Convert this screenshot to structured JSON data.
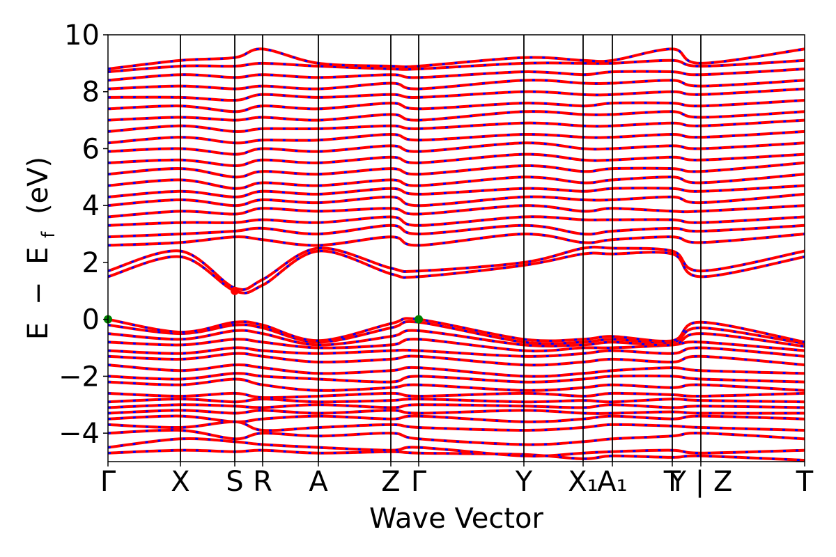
{
  "chart_data": {
    "type": "line",
    "xlabel": "Wave Vector",
    "ylabel_parts": [
      "E",
      "−",
      "E",
      "f",
      "(eV)"
    ],
    "ylim": [
      -5,
      10
    ],
    "yticks": [
      -4,
      -2,
      0,
      2,
      4,
      6,
      8,
      10
    ],
    "ytick_labels": [
      "−4",
      "−2",
      "0",
      "2",
      "4",
      "6",
      "8",
      "10"
    ],
    "xlim": [
      0,
      1
    ],
    "kpoints": [
      {
        "x": 0.0,
        "label": "Γ"
      },
      {
        "x": 0.104,
        "label": "X"
      },
      {
        "x": 0.182,
        "label": "S"
      },
      {
        "x": 0.222,
        "label": "R"
      },
      {
        "x": 0.302,
        "label": "A"
      },
      {
        "x": 0.406,
        "label": "Z"
      },
      {
        "x": 0.446,
        "label": "Γ"
      },
      {
        "x": 0.597,
        "label": "Y"
      },
      {
        "x": 0.682,
        "label": "X₁"
      },
      {
        "x": 0.724,
        "label": "A₁"
      },
      {
        "x": 0.81,
        "label": "T"
      },
      {
        "x": 0.851,
        "label": "Y | Z"
      },
      {
        "x": 1.0,
        "label": "T"
      }
    ],
    "series": [
      {
        "color": "#ff0000",
        "style": "solid"
      },
      {
        "color": "#0000ff",
        "style": "dashed"
      }
    ],
    "special_points": [
      {
        "x": 0.0,
        "y": 0.0,
        "color": "#008000"
      },
      {
        "x": 0.446,
        "y": 0.0,
        "color": "#008000"
      },
      {
        "x": 0.182,
        "y": 1.0,
        "color": "#ff0000"
      }
    ],
    "grid": false,
    "bands": [
      [
        -4.7,
        -4.6,
        -4.65,
        -4.6,
        -4.7,
        -4.65,
        -4.7,
        -4.75,
        -4.9,
        -4.8,
        -4.85,
        -4.8,
        -4.95
      ],
      [
        -4.5,
        -4.2,
        -4.3,
        -4.4,
        -4.5,
        -4.6,
        -4.5,
        -4.8,
        -4.7,
        -4.65,
        -4.6,
        -4.7,
        -4.6
      ],
      [
        -4.0,
        -3.9,
        -4.2,
        -4.0,
        -4.1,
        -4.0,
        -4.2,
        -4.4,
        -4.3,
        -4.2,
        -4.1,
        -4.0,
        -4.2
      ],
      [
        -3.7,
        -3.8,
        -3.6,
        -3.9,
        -3.8,
        -3.7,
        -3.8,
        -3.9,
        -3.8,
        -3.7,
        -3.75,
        -3.8,
        -3.9
      ],
      [
        -3.5,
        -3.4,
        -3.6,
        -3.5,
        -3.4,
        -3.5,
        -3.4,
        -3.6,
        -3.5,
        -3.4,
        -3.5,
        -3.4,
        -3.5
      ],
      [
        -3.3,
        -3.2,
        -3.3,
        -3.2,
        -3.3,
        -3.2,
        -3.3,
        -3.2,
        -3.3,
        -3.3,
        -3.25,
        -3.3,
        -3.3
      ],
      [
        -3.1,
        -3.0,
        -3.05,
        -3.1,
        -3.0,
        -3.1,
        -3.0,
        -3.05,
        -3.1,
        -3.0,
        -3.1,
        -3.05,
        -3.1
      ],
      [
        -2.9,
        -2.8,
        -2.9,
        -2.8,
        -2.9,
        -2.85,
        -2.8,
        -2.9,
        -2.85,
        -2.9,
        -2.8,
        -2.85,
        -2.9
      ],
      [
        -2.6,
        -2.7,
        -2.6,
        -2.75,
        -2.7,
        -2.6,
        -2.7,
        -2.6,
        -2.7,
        -2.6,
        -2.65,
        -2.7,
        -2.6
      ],
      [
        -2.2,
        -2.3,
        -2.1,
        -2.3,
        -2.5,
        -2.4,
        -2.3,
        -2.5,
        -2.4,
        -2.3,
        -2.4,
        -2.3,
        -2.5
      ],
      [
        -2.0,
        -2.1,
        -1.9,
        -2.0,
        -2.1,
        -2.2,
        -2.0,
        -2.2,
        -2.1,
        -2.0,
        -2.0,
        -2.1,
        -2.2
      ],
      [
        -1.6,
        -1.8,
        -1.6,
        -1.7,
        -1.9,
        -1.8,
        -1.7,
        -2.0,
        -1.9,
        -1.8,
        -1.7,
        -1.8,
        -1.9
      ],
      [
        -1.3,
        -1.4,
        -1.2,
        -1.3,
        -1.5,
        -1.4,
        -1.3,
        -1.6,
        -1.5,
        -1.4,
        -1.5,
        -1.3,
        -1.6
      ],
      [
        -1.1,
        -1.2,
        -1.0,
        -1.1,
        -1.2,
        -1.1,
        -1.1,
        -1.3,
        -1.2,
        -1.1,
        -1.2,
        -1.0,
        -1.3
      ],
      [
        -0.8,
        -0.9,
        -0.7,
        -0.8,
        -1.0,
        -0.9,
        -0.7,
        -1.1,
        -1.0,
        -1.0,
        -0.9,
        -0.8,
        -1.1
      ],
      [
        -0.5,
        -0.7,
        -0.4,
        -0.5,
        -0.9,
        -0.6,
        -0.4,
        -0.9,
        -0.9,
        -0.8,
        -0.9,
        -0.5,
        -0.95
      ],
      [
        -0.2,
        -0.5,
        -0.2,
        -0.3,
        -0.8,
        -0.3,
        -0.1,
        -0.8,
        -0.8,
        -0.7,
        -0.8,
        -0.3,
        -0.85
      ],
      [
        0.0,
        -0.45,
        -0.1,
        -0.2,
        -0.75,
        -0.15,
        0.0,
        -0.7,
        -0.7,
        -0.6,
        -0.75,
        -0.1,
        -0.8
      ],
      [
        1.5,
        2.2,
        1.0,
        1.2,
        2.4,
        1.6,
        1.5,
        1.9,
        2.3,
        2.3,
        2.3,
        1.5,
        2.2
      ],
      [
        1.7,
        2.4,
        1.1,
        1.4,
        2.5,
        1.8,
        1.7,
        2.0,
        2.5,
        2.5,
        2.4,
        1.7,
        2.4
      ],
      [
        2.6,
        2.7,
        2.9,
        2.8,
        2.6,
        2.9,
        2.6,
        3.0,
        2.7,
        2.8,
        2.9,
        2.7,
        3.0
      ],
      [
        2.9,
        3.0,
        3.1,
        3.2,
        3.0,
        3.3,
        3.0,
        3.3,
        3.0,
        3.1,
        3.2,
        3.1,
        3.3
      ],
      [
        3.3,
        3.4,
        3.4,
        3.5,
        3.4,
        3.6,
        3.3,
        3.6,
        3.5,
        3.5,
        3.5,
        3.4,
        3.6
      ],
      [
        3.6,
        3.8,
        3.7,
        3.9,
        3.8,
        3.9,
        3.7,
        4.0,
        3.8,
        3.9,
        3.8,
        3.8,
        4.0
      ],
      [
        4.0,
        4.2,
        4.0,
        4.2,
        4.1,
        4.3,
        4.0,
        4.3,
        4.2,
        4.2,
        4.3,
        4.1,
        4.4
      ],
      [
        4.3,
        4.5,
        4.3,
        4.5,
        4.4,
        4.6,
        4.4,
        4.6,
        4.5,
        4.6,
        4.6,
        4.5,
        4.7
      ],
      [
        4.7,
        4.9,
        4.6,
        4.8,
        4.7,
        4.9,
        4.7,
        5.0,
        4.8,
        4.9,
        5.0,
        4.8,
        5.1
      ],
      [
        5.1,
        5.3,
        5.0,
        5.2,
        5.1,
        5.3,
        5.1,
        5.4,
        5.2,
        5.3,
        5.3,
        5.2,
        5.5
      ],
      [
        5.5,
        5.6,
        5.4,
        5.6,
        5.5,
        5.7,
        5.5,
        5.8,
        5.6,
        5.6,
        5.7,
        5.6,
        5.8
      ],
      [
        5.9,
        6.0,
        5.8,
        6.0,
        5.9,
        6.1,
        5.9,
        6.2,
        6.0,
        6.0,
        6.1,
        6.0,
        6.2
      ],
      [
        6.2,
        6.4,
        6.2,
        6.3,
        6.3,
        6.5,
        6.3,
        6.5,
        6.4,
        6.4,
        6.5,
        6.4,
        6.6
      ],
      [
        6.6,
        6.8,
        6.6,
        6.7,
        6.7,
        6.8,
        6.7,
        6.9,
        6.8,
        6.8,
        6.9,
        6.8,
        7.0
      ],
      [
        7.0,
        7.1,
        7.0,
        7.1,
        7.0,
        7.2,
        7.0,
        7.3,
        7.2,
        7.2,
        7.3,
        7.1,
        7.3
      ],
      [
        7.4,
        7.5,
        7.3,
        7.5,
        7.4,
        7.6,
        7.4,
        7.6,
        7.5,
        7.6,
        7.6,
        7.5,
        7.7
      ],
      [
        7.8,
        7.8,
        7.7,
        7.9,
        7.8,
        7.9,
        7.8,
        8.0,
        7.9,
        7.9,
        8.0,
        7.9,
        8.1
      ],
      [
        8.1,
        8.2,
        8.1,
        8.2,
        8.1,
        8.3,
        8.1,
        8.4,
        8.3,
        8.3,
        8.4,
        8.2,
        8.4
      ],
      [
        8.4,
        8.6,
        8.5,
        8.6,
        8.5,
        8.6,
        8.5,
        8.7,
        8.6,
        8.7,
        8.7,
        8.6,
        8.8
      ],
      [
        8.7,
        8.9,
        8.9,
        9.0,
        8.9,
        8.8,
        8.8,
        9.0,
        9.0,
        9.0,
        9.1,
        8.9,
        9.1
      ],
      [
        8.8,
        9.1,
        9.2,
        9.5,
        9.0,
        8.9,
        8.9,
        9.2,
        9.1,
        9.1,
        9.5,
        9.0,
        9.5
      ]
    ]
  }
}
